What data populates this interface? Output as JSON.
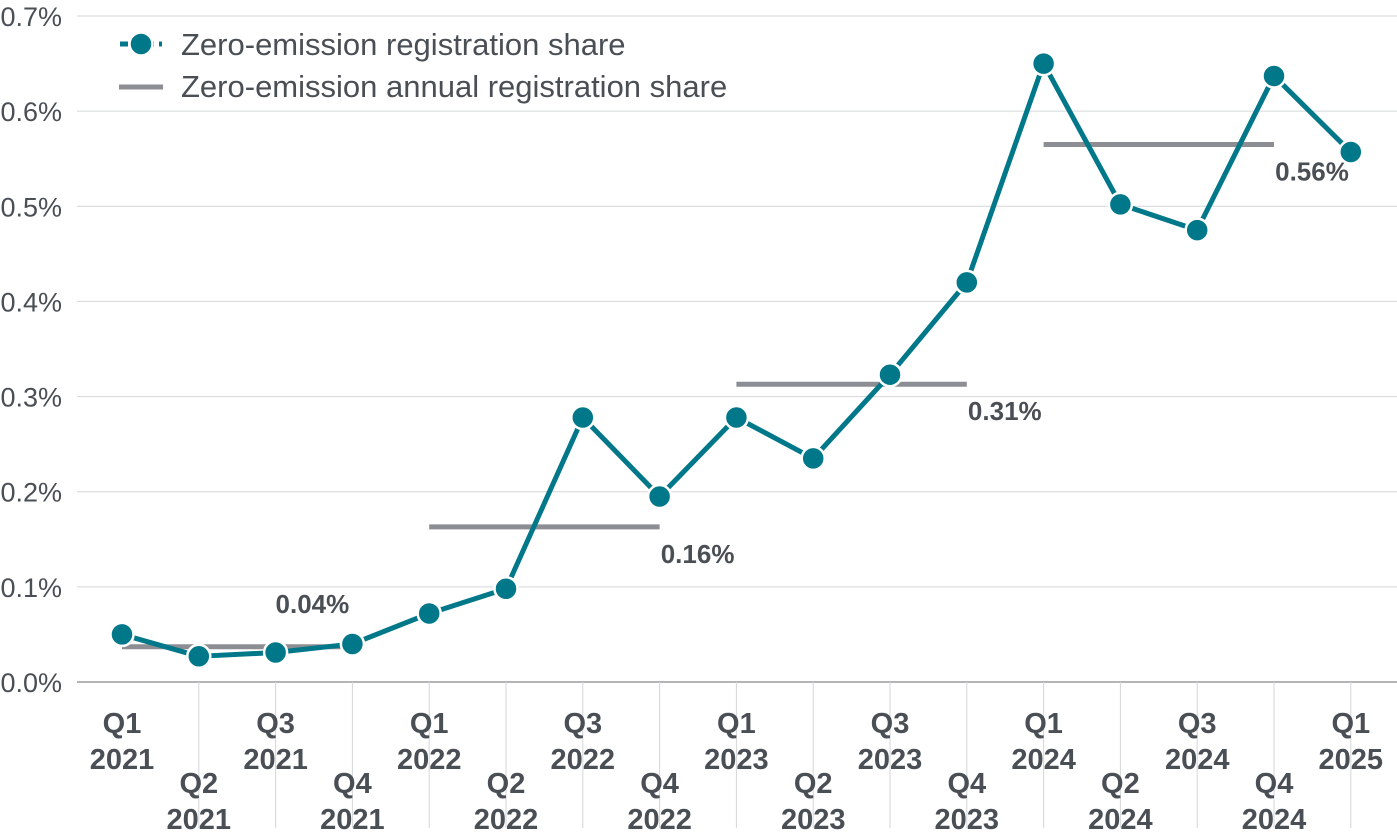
{
  "chart_data": {
    "type": "line",
    "title": "",
    "xlabel": "",
    "ylabel": "",
    "ylim": [
      0,
      0.007
    ],
    "yticks": [
      "0.0%",
      "0.1%",
      "0.2%",
      "0.3%",
      "0.4%",
      "0.5%",
      "0.6%",
      "0.7%"
    ],
    "grid": "horizontal",
    "legend_position": "top-left",
    "categories": [
      {
        "q": "Q1",
        "year": "2021"
      },
      {
        "q": "Q2",
        "year": "2021"
      },
      {
        "q": "Q3",
        "year": "2021"
      },
      {
        "q": "Q4",
        "year": "2021"
      },
      {
        "q": "Q1",
        "year": "2022"
      },
      {
        "q": "Q2",
        "year": "2022"
      },
      {
        "q": "Q3",
        "year": "2022"
      },
      {
        "q": "Q4",
        "year": "2022"
      },
      {
        "q": "Q1",
        "year": "2023"
      },
      {
        "q": "Q2",
        "year": "2023"
      },
      {
        "q": "Q3",
        "year": "2023"
      },
      {
        "q": "Q4",
        "year": "2023"
      },
      {
        "q": "Q1",
        "year": "2024"
      },
      {
        "q": "Q2",
        "year": "2024"
      },
      {
        "q": "Q3",
        "year": "2024"
      },
      {
        "q": "Q4",
        "year": "2024"
      },
      {
        "q": "Q1",
        "year": "2025"
      }
    ],
    "series": [
      {
        "name": "Zero-emission registration share",
        "kind": "line-markers",
        "color": "#00788a",
        "values": [
          0.0005,
          0.00027,
          0.00031,
          0.0004,
          0.00072,
          0.00098,
          0.00278,
          0.00195,
          0.00278,
          0.00235,
          0.00323,
          0.0042,
          0.0065,
          0.00502,
          0.00475,
          0.00637,
          0.00557
        ]
      },
      {
        "name": "Zero-emission annual registration share",
        "kind": "step",
        "color": "#8c8e93",
        "segments": [
          {
            "from": 0,
            "to": 3,
            "value": 0.00037,
            "label": "0.04%"
          },
          {
            "from": 4,
            "to": 7,
            "value": 0.00163,
            "label": "0.16%"
          },
          {
            "from": 8,
            "to": 11,
            "value": 0.00313,
            "label": "0.31%"
          },
          {
            "from": 12,
            "to": 15,
            "value": 0.00565,
            "label": "0.56%"
          }
        ]
      }
    ]
  }
}
